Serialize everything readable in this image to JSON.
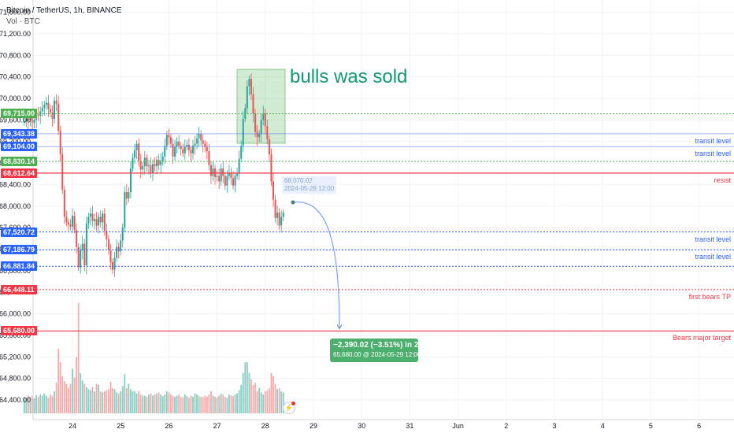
{
  "header": {
    "title": "Bitcoin / TetherUS, 1h, BINANCE",
    "subtitle": "Vol · BTC"
  },
  "annotations": {
    "box_text": "bulls was sold",
    "hover_price": "68,070.02",
    "hover_time": "2024-05-28 12:00",
    "measure_line1": "−2,390.02 (−3.51%) in 23h",
    "measure_line2": "65,680.00 @ 2024-05-29  12:00"
  },
  "colors": {
    "up": "#26a69a",
    "down": "#ef5350",
    "up_vol": "#86cdc4",
    "down_vol": "#f7a9a7",
    "green_line": "#4caf50",
    "blue_line": "#2962ff",
    "red_line": "#f23645"
  },
  "price_lines": [
    {
      "price": 69715.0,
      "label": "69,715.00",
      "color": "#4caf50",
      "style": "dotted",
      "text": ""
    },
    {
      "price": 69343.38,
      "label": "69,343.38",
      "color": "#2962ff",
      "style": "solid-light",
      "text": "transit level"
    },
    {
      "price": 69104.0,
      "label": "69,104.00",
      "color": "#2962ff",
      "style": "solid-light",
      "text": "transit level"
    },
    {
      "price": 68830.14,
      "label": "68,830.14",
      "color": "#4caf50",
      "style": "dotted",
      "text": ""
    },
    {
      "price": 68612.64,
      "label": "68,612.64",
      "color": "#f23645",
      "style": "solid",
      "text": "resist"
    },
    {
      "price": 67520.72,
      "label": "67,520.72",
      "color": "#2962ff",
      "style": "dotted",
      "text": "transit level"
    },
    {
      "price": 67186.79,
      "label": "67,186.79",
      "color": "#2962ff",
      "style": "dotted",
      "text": "transit level"
    },
    {
      "price": 66881.84,
      "label": "66,881.84",
      "color": "#2962ff",
      "style": "dotted",
      "text": ""
    },
    {
      "price": 66448.11,
      "label": "66,448.11",
      "color": "#f23645",
      "style": "dotted",
      "text": "first bears TP"
    },
    {
      "price": 65680.0,
      "label": "65,680.00",
      "color": "#f23645",
      "style": "solid",
      "text": "Bears major target"
    }
  ],
  "chart_data": {
    "type": "candlestick",
    "ylim": [
      64200,
      71700
    ],
    "y_ticks": [
      "71,600.00",
      "71,200.00",
      "70,800.00",
      "70,400.00",
      "70,000.00",
      "69,600.00",
      "69,200.00",
      "68,800.00",
      "68,400.00",
      "68,000.00",
      "67,600.00",
      "67,200.00",
      "66,800.00",
      "66,400.00",
      "66,000.00",
      "65,600.00",
      "65,200.00",
      "64,800.00",
      "64,400.00"
    ],
    "y_tick_values": [
      71600,
      71200,
      70800,
      70400,
      70000,
      69600,
      69200,
      68800,
      68400,
      68000,
      67600,
      67200,
      66800,
      66400,
      66000,
      65600,
      65200,
      64800,
      64400
    ],
    "x_ticks": [
      "24",
      "25",
      "26",
      "27",
      "28",
      "29",
      "30",
      "31",
      "Jun",
      "2",
      "3",
      "4",
      "5",
      "6"
    ],
    "x_tick_index": [
      24,
      48,
      72,
      96,
      120,
      144,
      168,
      192,
      216,
      240,
      264,
      288,
      312,
      336
    ],
    "candles_close": [
      69580,
      69620,
      69590,
      69640,
      69550,
      69600,
      69700,
      69680,
      69760,
      69830,
      69880,
      69920,
      69800,
      69740,
      69620,
      69960,
      69900,
      69400,
      68960,
      68300,
      67800,
      67700,
      67660,
      67620,
      67820,
      67560,
      67240,
      66860,
      67180,
      67300,
      66900,
      67680,
      67800,
      67860,
      67720,
      67760,
      67640,
      67800,
      67700,
      67860,
      67540,
      67380,
      67180,
      66960,
      66820,
      67040,
      67240,
      67160,
      67360,
      67600,
      68260,
      68140,
      68260,
      68700,
      68900,
      69040,
      69160,
      68840,
      68680,
      68740,
      68900,
      68740,
      68760,
      68620,
      68780,
      68740,
      68860,
      68760,
      68840,
      68920,
      69120,
      69320,
      69280,
      69160,
      68920,
      69100,
      69200,
      69120,
      69060,
      68980,
      69100,
      69140,
      69040,
      68980,
      69120,
      69160,
      69260,
      69340,
      69220,
      69160,
      69100,
      69020,
      68760,
      68560,
      68700,
      68540,
      68560,
      68460,
      68700,
      68560,
      68380,
      68560,
      68620,
      68520,
      68380,
      68560,
      68600,
      68880,
      69120,
      69620,
      69820,
      70220,
      70360,
      70080,
      69720,
      69380,
      69280,
      69340,
      69600,
      69720,
      69480,
      69240,
      68960,
      68460,
      68120,
      67780,
      67880,
      67640,
      67800,
      67880
    ],
    "volumes": [
      64450,
      64440,
      64480,
      64450,
      64470,
      64430,
      64490,
      64460,
      64500,
      64480,
      64520,
      64480,
      64440,
      64500,
      64470,
      64560,
      64720,
      65350,
      65100,
      64840,
      64750,
      64700,
      64620,
      64700,
      64980,
      64820,
      65200,
      66200,
      64900,
      64760,
      64700,
      64640,
      64600,
      64580,
      64640,
      64560,
      64700,
      64680,
      64560,
      64540,
      64560,
      64580,
      64600,
      64740,
      64620,
      64600,
      64540,
      64520,
      64560,
      64660,
      64880,
      64620,
      64700,
      64600,
      64560,
      64560,
      64520,
      64560,
      64500,
      64480,
      64480,
      64460,
      64500,
      64520,
      64480,
      64500,
      64520,
      64540,
      64500,
      64470,
      64500,
      64560,
      64540,
      64500,
      64480,
      64460,
      64480,
      64500,
      64460,
      64450,
      64500,
      64470,
      64440,
      64480,
      64460,
      64520,
      64500,
      64470,
      64460,
      64450,
      64480,
      64460,
      64500,
      64560,
      64480,
      64460,
      64440,
      64480,
      64520,
      64500,
      64460,
      64440,
      64500,
      64480,
      64470,
      64500,
      64520,
      64580,
      64680,
      64900,
      65100,
      65100,
      64900,
      64780,
      64680,
      64720,
      64560,
      64620,
      64540,
      64500,
      64560,
      64580,
      64620,
      64900,
      64840,
      64700,
      64600,
      64620,
      64560,
      64540
    ]
  }
}
